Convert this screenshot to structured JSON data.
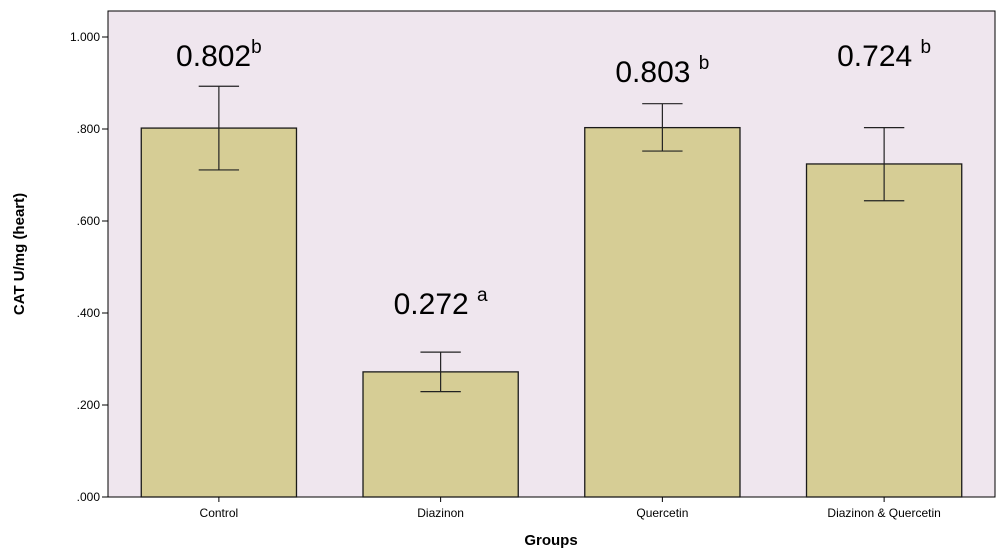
{
  "chart_data": {
    "type": "bar",
    "xlabel": "Groups",
    "ylabel": "CAT  U/mg (heart)",
    "ylim": [
      0,
      1.0
    ],
    "yticks": [
      0,
      0.2,
      0.4,
      0.6,
      0.8,
      1.0
    ],
    "ytick_labels": [
      ".000",
      ".200",
      ".400",
      ".600",
      ".800",
      "1.000"
    ],
    "categories": [
      "Control",
      "Diazinon",
      "Quercetin",
      "Diazinon & Quercetin"
    ],
    "values": [
      0.802,
      0.272,
      0.803,
      0.724
    ],
    "error_low": [
      0.711,
      0.229,
      0.752,
      0.644
    ],
    "error_high": [
      0.893,
      0.315,
      0.855,
      0.803
    ],
    "data_labels": [
      {
        "value": "0.802",
        "letter": "b"
      },
      {
        "value": "0.272 ",
        "letter": "a"
      },
      {
        "value": "0.803 ",
        "letter": "b"
      },
      {
        "value": "0.724 ",
        "letter": "b"
      }
    ],
    "grid": false,
    "colors": {
      "plot_background": "#efe6ee",
      "bar_fill": "#d6cd95",
      "bar_stroke": "#1a1a1a",
      "axis": "#000000"
    }
  }
}
